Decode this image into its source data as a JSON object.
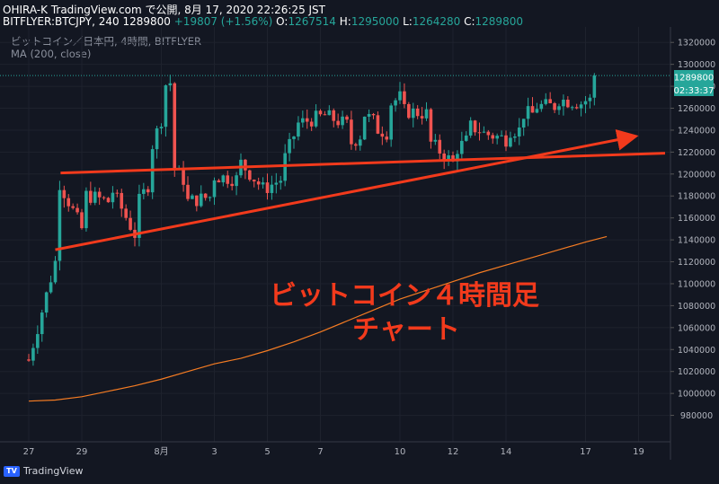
{
  "header": {
    "line1": "OHIRA-K TradingView.com で公開, 8月 17, 2020 22:26:25 JST",
    "symbol": "BITFLYER:BTCJPY, 240",
    "price": "1289800",
    "change": "+19807 (+1.56%)",
    "o_label": "O:",
    "o_value": "1267514",
    "h_label": "H:",
    "h_value": "1295000",
    "l_label": "L:",
    "l_value": "1264280",
    "c_label": "C:",
    "c_value": "1289800"
  },
  "legend": {
    "title": "ビットコイン／日本円, 4時間, BITFLYER",
    "indicator": "MA (200, close)"
  },
  "annotation": {
    "line1": "ビットコイン４時間足",
    "line2": "チャート"
  },
  "price_label": "1289800",
  "countdown_label": "02:33:37",
  "brand": "TradingView",
  "colors": {
    "up": "#26a69a",
    "down": "#ef5350",
    "ma": "#f57c23",
    "trend": "#f23a1c",
    "bg": "#131722"
  },
  "chart_data": {
    "type": "candlestick",
    "ylim": [
      960000,
      1330000
    ],
    "y_ticks": [
      980000,
      1000000,
      1020000,
      1040000,
      1060000,
      1080000,
      1100000,
      1120000,
      1140000,
      1160000,
      1180000,
      1200000,
      1220000,
      1240000,
      1260000,
      1280000,
      1300000,
      1320000
    ],
    "x_ticks": [
      {
        "label": "27",
        "day": 0
      },
      {
        "label": "29",
        "day": 2
      },
      {
        "label": "8月",
        "day": 5
      },
      {
        "label": "3",
        "day": 7
      },
      {
        "label": "5",
        "day": 9
      },
      {
        "label": "7",
        "day": 11
      },
      {
        "label": "10",
        "day": 14
      },
      {
        "label": "12",
        "day": 16
      },
      {
        "label": "14",
        "day": 18
      },
      {
        "label": "17",
        "day": 21
      },
      {
        "label": "19",
        "day": 23
      }
    ],
    "last_price": 1289800,
    "series": [
      {
        "name": "MA (200, close)",
        "type": "line",
        "x": [
          0,
          1,
          2,
          3,
          4,
          5,
          6,
          7,
          8,
          9,
          10,
          11,
          12,
          13,
          14,
          15,
          16,
          17,
          18,
          19,
          20,
          21,
          21.8
        ],
        "y": [
          993000,
          994000,
          997000,
          1002000,
          1007000,
          1013000,
          1020000,
          1027000,
          1032000,
          1039000,
          1047000,
          1056000,
          1066000,
          1076000,
          1086000,
          1094000,
          1102000,
          1110000,
          1117000,
          1124000,
          1131000,
          1138000,
          1143000
        ]
      }
    ],
    "trendlines": [
      {
        "x": [
          1.2,
          24
        ],
        "y": [
          1201000,
          1219000
        ]
      },
      {
        "x": [
          1.0,
          22.8
        ],
        "y": [
          1131000,
          1234000
        ]
      }
    ],
    "ohlc_points": [
      [
        0.0,
        1031000,
        1030000
      ],
      [
        1.0,
        1120000,
        1200000
      ],
      [
        2.0,
        1150000,
        1182000
      ],
      [
        3.0,
        1175000,
        1192000
      ],
      [
        4.0,
        1145000,
        1168000
      ],
      [
        4.5,
        1190000,
        1215000
      ],
      [
        5.0,
        1250000,
        1280000
      ],
      [
        5.5,
        1285000,
        1205000
      ],
      [
        6.0,
        1190000,
        1175000
      ],
      [
        7.0,
        1180000,
        1198000
      ],
      [
        8.0,
        1195000,
        1210000
      ],
      [
        9.0,
        1182000,
        1188000
      ],
      [
        9.5,
        1195000,
        1205000
      ],
      [
        10.0,
        1235000,
        1245000
      ],
      [
        11.0,
        1252000,
        1255000
      ],
      [
        12.0,
        1245000,
        1225000
      ],
      [
        12.5,
        1235000,
        1258000
      ],
      [
        13.0,
        1248000,
        1242000
      ],
      [
        13.5,
        1238000,
        1262000
      ],
      [
        14.0,
        1270000,
        1258000
      ],
      [
        15.0,
        1255000,
        1232000
      ],
      [
        16.0,
        1210000,
        1220000
      ],
      [
        16.5,
        1230000,
        1245000
      ],
      [
        17.0,
        1240000,
        1238000
      ],
      [
        18.0,
        1232000,
        1240000
      ],
      [
        18.5,
        1240000,
        1255000
      ],
      [
        19.0,
        1255000,
        1262000
      ],
      [
        20.0,
        1262000,
        1268000
      ],
      [
        21.0,
        1264000,
        1267000
      ],
      [
        21.4,
        1267514,
        1289800
      ]
    ]
  }
}
